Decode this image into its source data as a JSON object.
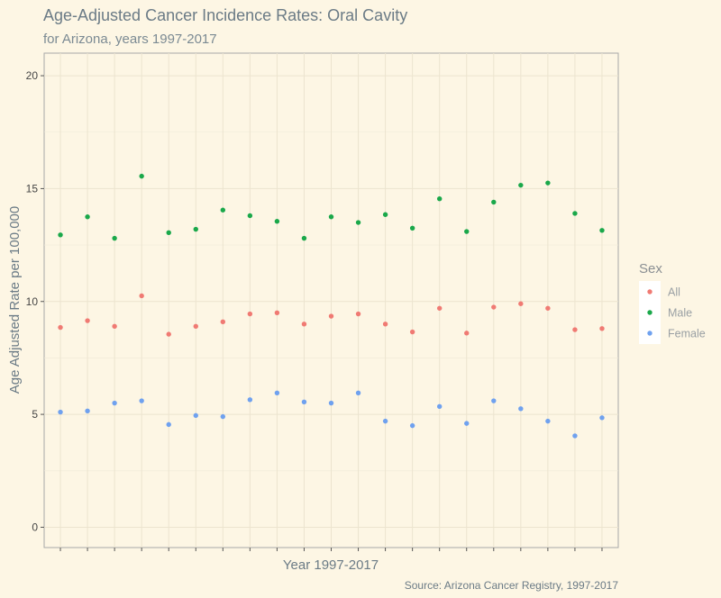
{
  "chart_data": {
    "type": "scatter",
    "title": "Age-Adjusted Cancer Incidence Rates: Oral Cavity",
    "subtitle": "for Arizona, years 1997-2017",
    "xlabel": "Year 1997-2017",
    "ylabel": "Age Adjusted Rate per 100,000",
    "caption": "Source: Arizona Cancer Registry, 1997-2017",
    "x": [
      1997,
      1998,
      1999,
      2000,
      2001,
      2002,
      2003,
      2004,
      2005,
      2006,
      2007,
      2008,
      2009,
      2010,
      2011,
      2012,
      2013,
      2014,
      2015,
      2016,
      2017
    ],
    "xlim": [
      1996.4,
      2017.6
    ],
    "ylim": [
      -0.9,
      21
    ],
    "yticks": [
      0,
      5,
      10,
      15,
      20
    ],
    "grid": true,
    "legend": {
      "title": "Sex",
      "position": "right"
    },
    "series": [
      {
        "name": "All",
        "color": "#f07a73",
        "values": [
          8.85,
          9.15,
          8.9,
          10.25,
          8.55,
          8.9,
          9.1,
          9.45,
          9.5,
          9.0,
          9.35,
          9.45,
          9.0,
          8.65,
          9.7,
          8.6,
          9.75,
          9.9,
          9.7,
          8.75,
          8.8
        ]
      },
      {
        "name": "Male",
        "color": "#1aa84a",
        "values": [
          12.95,
          13.75,
          12.8,
          15.55,
          13.05,
          13.2,
          14.05,
          13.8,
          13.55,
          12.8,
          13.75,
          13.5,
          13.85,
          13.25,
          14.55,
          13.1,
          14.4,
          15.15,
          15.25,
          13.9,
          13.15
        ]
      },
      {
        "name": "Female",
        "color": "#6fa1ef",
        "values": [
          5.1,
          5.15,
          5.5,
          5.6,
          4.55,
          4.95,
          4.9,
          5.65,
          5.95,
          5.55,
          5.5,
          5.95,
          4.7,
          4.5,
          5.35,
          4.6,
          5.6,
          5.25,
          4.7,
          4.05,
          4.85
        ]
      }
    ]
  }
}
